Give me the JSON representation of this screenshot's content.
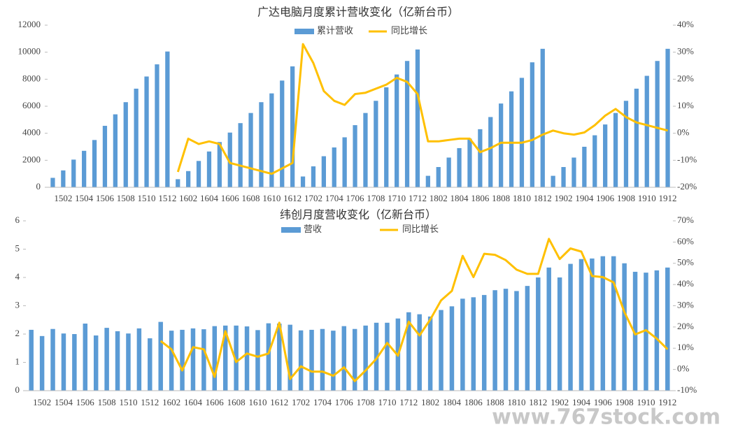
{
  "chart_data": [
    {
      "type": "bar-line",
      "title": "广达电脑月度累计营收变化（亿新台币）",
      "categories": [
        null,
        "1502",
        null,
        "1504",
        null,
        "1506",
        null,
        "1508",
        null,
        "1510",
        null,
        "1512",
        null,
        "1602",
        null,
        "1604",
        null,
        "1606",
        null,
        "1608",
        null,
        "1610",
        null,
        "1612",
        null,
        "1702",
        null,
        "1704",
        null,
        "1706",
        null,
        "1708",
        null,
        "1710",
        null,
        "1712",
        null,
        "1802",
        null,
        "1804",
        null,
        "1806",
        null,
        "1808",
        null,
        "1810",
        null,
        "1812",
        null,
        "1902",
        null,
        "1904",
        null,
        "1906",
        null,
        "1908",
        null,
        "1910",
        null,
        "1912"
      ],
      "series": [
        {
          "name": "累计营收",
          "color": "#5b9bd5",
          "values": [
            700,
            1250,
            2050,
            2700,
            3500,
            4550,
            5400,
            6300,
            7300,
            8200,
            9100,
            10050,
            600,
            1200,
            1950,
            2650,
            3350,
            4050,
            4750,
            5500,
            6300,
            6950,
            7900,
            8950,
            800,
            1550,
            2300,
            2950,
            3700,
            4600,
            5500,
            6400,
            7400,
            8350,
            9350,
            10200,
            850,
            1500,
            2200,
            2900,
            3600,
            4300,
            5200,
            6200,
            7100,
            8100,
            9250,
            10250,
            850,
            1500,
            2200,
            3000,
            3850,
            4650,
            5500,
            6400,
            7300,
            8250,
            9350,
            10250
          ]
        },
        {
          "name": "同比增长",
          "color": "#ffc000",
          "axis": "y2",
          "values": [
            null,
            null,
            null,
            null,
            null,
            null,
            null,
            null,
            null,
            null,
            null,
            null,
            -14.3,
            -2,
            -4,
            -3,
            -4,
            -11,
            -12,
            -13,
            -14,
            -15,
            -13,
            -11,
            33,
            26,
            15.6,
            12,
            10.5,
            14.5,
            15,
            16.5,
            18,
            20.5,
            19,
            14.5,
            -3,
            -3,
            -2.5,
            -2,
            -2,
            -7,
            -5.5,
            -3.5,
            -3.5,
            -3.5,
            -2.5,
            -0.5,
            1,
            0,
            -0.5,
            0.3,
            3,
            6.5,
            9,
            6,
            4,
            3,
            2,
            1
          ]
        }
      ],
      "ylim": [
        0,
        12000
      ],
      "yticks": [
        0,
        2000,
        4000,
        6000,
        8000,
        10000,
        12000
      ],
      "y2lim": [
        -20,
        40
      ],
      "y2ticks": [
        {
          "value": -20,
          "label": "-20%"
        },
        {
          "value": -10,
          "label": "-10%"
        },
        {
          "value": 0,
          "label": "0%"
        },
        {
          "value": 10,
          "label": "10%"
        },
        {
          "value": 20,
          "label": "20%"
        },
        {
          "value": 30,
          "label": "30%"
        },
        {
          "value": 40,
          "label": "40%"
        }
      ],
      "grid": false
    },
    {
      "type": "bar-line",
      "title": "纬创月度营收变化（亿新台币）",
      "categories": [
        null,
        "1502",
        null,
        "1504",
        null,
        "1506",
        null,
        "1508",
        null,
        "1510",
        null,
        "1512",
        null,
        "1602",
        null,
        "1604",
        null,
        "1606",
        null,
        "1608",
        null,
        "1610",
        null,
        "1612",
        null,
        "1702",
        null,
        "1704",
        null,
        "1706",
        null,
        "1708",
        null,
        "1710",
        null,
        "1712",
        null,
        "1802",
        null,
        "1804",
        null,
        "1806",
        null,
        "1808",
        null,
        "1810",
        null,
        "1812",
        null,
        "1902",
        null,
        "1904",
        null,
        "1906",
        null,
        "1908",
        null,
        "1910",
        null,
        "1912"
      ],
      "series": [
        {
          "name": "营收",
          "color": "#5b9bd5",
          "values": [
            2.15,
            1.93,
            2.18,
            2.02,
            2.0,
            2.37,
            1.95,
            2.22,
            2.1,
            2.02,
            2.2,
            1.85,
            2.43,
            2.12,
            2.15,
            2.2,
            2.17,
            2.28,
            2.3,
            2.3,
            2.27,
            2.14,
            2.38,
            2.37,
            2.33,
            2.13,
            2.15,
            2.18,
            2.12,
            2.28,
            2.18,
            2.3,
            2.4,
            2.4,
            2.55,
            2.77,
            2.7,
            2.62,
            2.85,
            2.98,
            3.25,
            3.3,
            3.38,
            3.55,
            3.6,
            3.52,
            3.7,
            4.0,
            4.35,
            4.0,
            4.48,
            4.65,
            4.67,
            4.75,
            4.75,
            4.5,
            4.2,
            4.17,
            4.25,
            4.35
          ]
        },
        {
          "name": "同比增长",
          "color": "#ffc000",
          "axis": "y2",
          "values": [
            null,
            null,
            null,
            null,
            null,
            null,
            null,
            null,
            null,
            null,
            null,
            null,
            13.4,
            9.5,
            -0.5,
            10.5,
            9.5,
            -3.5,
            18,
            3.5,
            7.5,
            6,
            7.5,
            22,
            -4.5,
            1.5,
            -1,
            -1,
            -3,
            1,
            -5.5,
            -0.5,
            5,
            12.5,
            6.5,
            22.5,
            16,
            23.5,
            32.5,
            37,
            53.5,
            43.5,
            54.5,
            54,
            51.5,
            47,
            45,
            45,
            61.5,
            52,
            57,
            55.5,
            44,
            43.5,
            41,
            27,
            16.5,
            18.5,
            14.5,
            9.5
          ]
        }
      ],
      "ylim": [
        0,
        6
      ],
      "yticks": [
        0,
        1,
        2,
        3,
        4,
        5,
        6
      ],
      "y2lim": [
        -10,
        70
      ],
      "y2ticks": [
        {
          "value": -10,
          "label": "-10%"
        },
        {
          "value": 0,
          "label": "0%"
        },
        {
          "value": 10,
          "label": "10%"
        },
        {
          "value": 20,
          "label": "20%"
        },
        {
          "value": 30,
          "label": "30%"
        },
        {
          "value": 40,
          "label": "40%"
        },
        {
          "value": 50,
          "label": "50%"
        },
        {
          "value": 60,
          "label": "60%"
        },
        {
          "value": 70,
          "label": "70%"
        }
      ],
      "grid": false
    }
  ],
  "watermark": "www.767stock.com"
}
